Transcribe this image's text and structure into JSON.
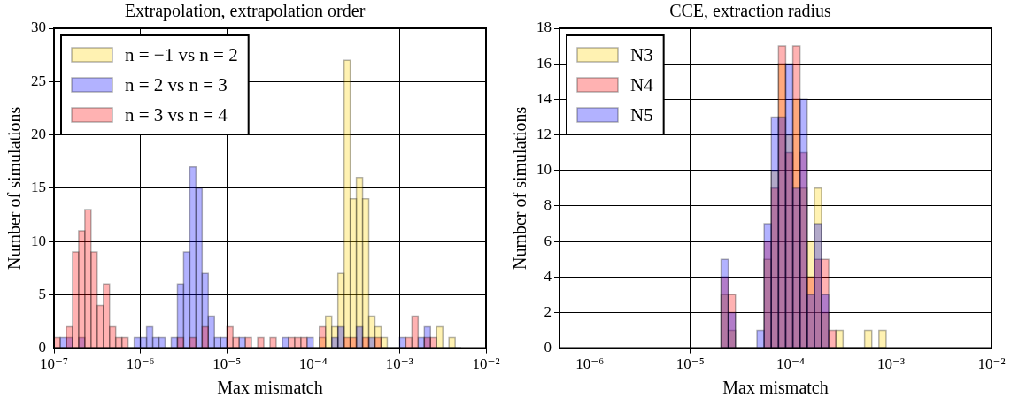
{
  "chart_data": [
    {
      "type": "histogram",
      "title": "Extrapolation, extrapolation order",
      "xlabel": "Max mismatch",
      "ylabel": "Number of simulations",
      "log": "x",
      "grid": true,
      "legend": "top left",
      "xlim": [
        1e-07,
        0.01
      ],
      "xticks": [
        {
          "value": 1e-07,
          "label": "10⁻⁷"
        },
        {
          "value": 1e-06,
          "label": "10⁻⁶"
        },
        {
          "value": 1e-05,
          "label": "10⁻⁵"
        },
        {
          "value": 0.0001,
          "label": "10⁻⁴"
        },
        {
          "value": 0.001,
          "label": "10⁻³"
        },
        {
          "value": 0.01,
          "label": "10⁻²"
        }
      ],
      "ylim": [
        0,
        30
      ],
      "yticks": [
        0,
        5,
        10,
        15,
        20,
        25,
        30
      ],
      "bins": [
        1e-07,
        1.179e-07,
        1.389e-07,
        1.638e-07,
        1.931e-07,
        2.276e-07,
        2.683e-07,
        3.162e-07,
        3.728e-07,
        4.394e-07,
        5.179e-07,
        6.105e-07,
        7.197e-07,
        8.483e-07,
        1e-06,
        1.179e-06,
        1.389e-06,
        1.638e-06,
        1.931e-06,
        2.276e-06,
        2.683e-06,
        3.162e-06,
        3.728e-06,
        4.394e-06,
        5.179e-06,
        6.105e-06,
        7.197e-06,
        8.483e-06,
        1e-05,
        1.179e-05,
        1.389e-05,
        1.638e-05,
        1.931e-05,
        2.276e-05,
        2.683e-05,
        3.162e-05,
        3.728e-05,
        4.394e-05,
        5.179e-05,
        6.105e-05,
        7.197e-05,
        8.483e-05,
        0.0001,
        0.0001179,
        0.0001389,
        0.0001638,
        0.0001931,
        0.0002276,
        0.0002683,
        0.0003162,
        0.0003728,
        0.0004394,
        0.0005179,
        0.0006105,
        0.0007197,
        0.0008483,
        0.001,
        0.001179,
        0.001389,
        0.001638,
        0.001931,
        0.002276,
        0.002683,
        0.003162,
        0.003728,
        0.004394,
        0.005179
      ],
      "series": [
        {
          "name": "n = −1 vs n = 2",
          "color": "#ffd400",
          "values": [
            0,
            0,
            0,
            0,
            0,
            0,
            0,
            0,
            0,
            0,
            0,
            0,
            0,
            0,
            0,
            0,
            0,
            0,
            0,
            0,
            0,
            0,
            0,
            0,
            0,
            0,
            0,
            0,
            0,
            0,
            0,
            0,
            0,
            0,
            0,
            0,
            0,
            0,
            0,
            0,
            0,
            0,
            0,
            1,
            3,
            2,
            7,
            27,
            14,
            16,
            14,
            3,
            2,
            1,
            0,
            0,
            0,
            0,
            0,
            0,
            0,
            0,
            2,
            0,
            1,
            0
          ]
        },
        {
          "name": "n = 2 vs n = 3",
          "color": "#0000ff",
          "values": [
            0,
            1,
            1,
            0,
            1,
            0,
            0,
            0,
            0,
            0,
            0,
            0,
            0,
            1,
            1,
            2,
            1,
            1,
            0,
            1,
            6,
            9,
            17,
            15,
            7,
            3,
            1,
            1,
            0,
            0,
            1,
            0,
            0,
            0,
            0,
            0,
            0,
            1,
            0,
            0,
            0,
            1,
            0,
            0,
            0,
            1,
            2,
            0,
            0,
            2,
            0,
            1,
            0,
            0,
            0,
            0,
            1,
            0,
            0,
            1,
            2,
            0,
            0,
            0,
            0,
            0
          ]
        },
        {
          "name": "n = 3 vs n = 4",
          "color": "#ff0000",
          "values": [
            1,
            0,
            2,
            9,
            11,
            13,
            9,
            4,
            6,
            2,
            1,
            1,
            0,
            0,
            0,
            0,
            0,
            0,
            0,
            0,
            1,
            0,
            1,
            0,
            2,
            0,
            0,
            0,
            2,
            1,
            0,
            1,
            0,
            1,
            0,
            1,
            0,
            0,
            1,
            1,
            1,
            0,
            0,
            2,
            0,
            0,
            0,
            1,
            1,
            0,
            1,
            0,
            1,
            0,
            0,
            0,
            0,
            1,
            3,
            0,
            1,
            1,
            0,
            0,
            0,
            0
          ]
        }
      ]
    },
    {
      "type": "histogram",
      "title": "CCE, extraction radius",
      "xlabel": "Max mismatch",
      "ylabel": "Number of simulations",
      "log": "x",
      "grid": true,
      "legend": "top left",
      "xlim": [
        5e-07,
        0.01
      ],
      "xticks": [
        {
          "value": 1e-06,
          "label": "10⁻⁶"
        },
        {
          "value": 1e-05,
          "label": "10⁻⁵"
        },
        {
          "value": 0.0001,
          "label": "10⁻⁴"
        },
        {
          "value": 0.001,
          "label": "10⁻³"
        },
        {
          "value": 0.01,
          "label": "10⁻²"
        }
      ],
      "ylim": [
        0,
        18
      ],
      "yticks": [
        0,
        2,
        4,
        6,
        8,
        10,
        12,
        14,
        16,
        18
      ],
      "bins": [
        2.03e-05,
        2.393e-05,
        2.821e-05,
        3.325e-05,
        3.92e-05,
        4.621e-05,
        5.447e-05,
        6.421e-05,
        7.569e-05,
        8.922e-05,
        0.00010518,
        0.00012398,
        0.00014615,
        0.00017228,
        0.00020309,
        0.0002394,
        0.0002822,
        0.0003327,
        0.0003922,
        0.0004623,
        0.000545,
        0.0006424,
        0.0007573,
        0.0008927
      ],
      "series": [
        {
          "name": "N3",
          "color": "#ffd400",
          "values": [
            3,
            1,
            0,
            0,
            0,
            0,
            5,
            10,
            16,
            12,
            14,
            9,
            6,
            9,
            2,
            0,
            1,
            0,
            0,
            0,
            1,
            0,
            1
          ]
        },
        {
          "name": "N4",
          "color": "#ff0000",
          "values": [
            4,
            3,
            0,
            0,
            0,
            0,
            6,
            9,
            17,
            11,
            17,
            11,
            4,
            5,
            5,
            1,
            0,
            0,
            0,
            0,
            0,
            0,
            0
          ]
        },
        {
          "name": "N5",
          "color": "#0000ff",
          "values": [
            5,
            2,
            0,
            0,
            0,
            1,
            7,
            13,
            13,
            16,
            9,
            14,
            3,
            7,
            3,
            0,
            0,
            0,
            0,
            0,
            0,
            0,
            0
          ]
        }
      ]
    }
  ]
}
